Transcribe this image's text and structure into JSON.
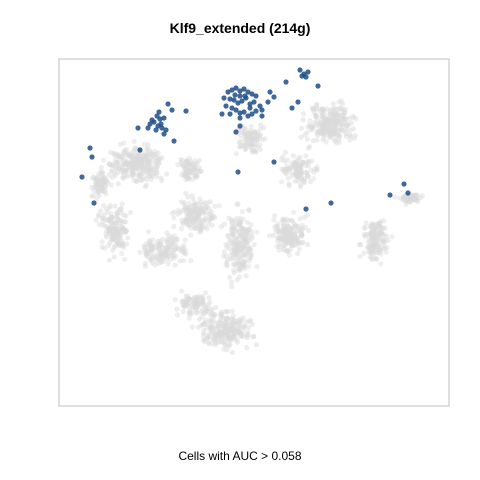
{
  "chart_data": {
    "type": "scatter",
    "title": "Klf9_extended (214g)",
    "caption": "Cells with AUC > 0.058",
    "xlabel": "",
    "ylabel": "",
    "grid": false,
    "legend": "none",
    "colors": {
      "background_cells": "#dadada",
      "highlighted_cells": "#1f4e87",
      "frame": "#bfbfbf"
    },
    "series": [
      {
        "kind": "highlighted",
        "points": [
          [
            300,
            70
          ],
          [
            304,
            74
          ],
          [
            308,
            72
          ],
          [
            306,
            77
          ],
          [
            302,
            76
          ],
          [
            228,
            92
          ],
          [
            232,
            90
          ],
          [
            236,
            88
          ],
          [
            240,
            91
          ],
          [
            244,
            89
          ],
          [
            248,
            92
          ],
          [
            252,
            94
          ],
          [
            256,
            96
          ],
          [
            224,
            98
          ],
          [
            230,
            99
          ],
          [
            234,
            100
          ],
          [
            238,
            103
          ],
          [
            242,
            101
          ],
          [
            246,
            98
          ],
          [
            250,
            104
          ],
          [
            254,
            102
          ],
          [
            226,
            106
          ],
          [
            232,
            108
          ],
          [
            236,
            110
          ],
          [
            240,
            113
          ],
          [
            244,
            112
          ],
          [
            248,
            116
          ],
          [
            252,
            114
          ],
          [
            256,
            111
          ],
          [
            230,
            114
          ],
          [
            240,
            118
          ],
          [
            250,
            108
          ],
          [
            260,
            106
          ],
          [
            235,
            95
          ],
          [
            245,
            96
          ],
          [
            240,
            96
          ],
          [
            262,
            110
          ],
          [
            270,
            92
          ],
          [
            274,
            97
          ],
          [
            286,
            82
          ],
          [
            292,
            108
          ],
          [
            298,
            102
          ],
          [
            318,
            86
          ],
          [
            268,
            102
          ],
          [
            240,
            126
          ],
          [
            236,
            132
          ],
          [
            262,
            116
          ],
          [
            222,
            114
          ],
          [
            150,
            124
          ],
          [
            154,
            122
          ],
          [
            158,
            126
          ],
          [
            160,
            119
          ],
          [
            156,
            130
          ],
          [
            162,
            128
          ],
          [
            164,
            118
          ],
          [
            152,
            120
          ],
          [
            166,
            130
          ],
          [
            159,
            112
          ],
          [
            168,
            104
          ],
          [
            172,
            110
          ],
          [
            161,
            124
          ],
          [
            157,
            116
          ],
          [
            164,
            134
          ],
          [
            174,
            141
          ],
          [
            148,
            128
          ],
          [
            186,
            111
          ],
          [
            90,
            148
          ],
          [
            92,
            157
          ],
          [
            140,
            150
          ],
          [
            82,
            177
          ],
          [
            94,
            203
          ],
          [
            238,
            172
          ],
          [
            274,
            162
          ],
          [
            306,
            209
          ],
          [
            331,
            203
          ],
          [
            390,
            195
          ],
          [
            404,
            184
          ],
          [
            408,
            193
          ],
          [
            138,
            128
          ]
        ]
      }
    ]
  }
}
